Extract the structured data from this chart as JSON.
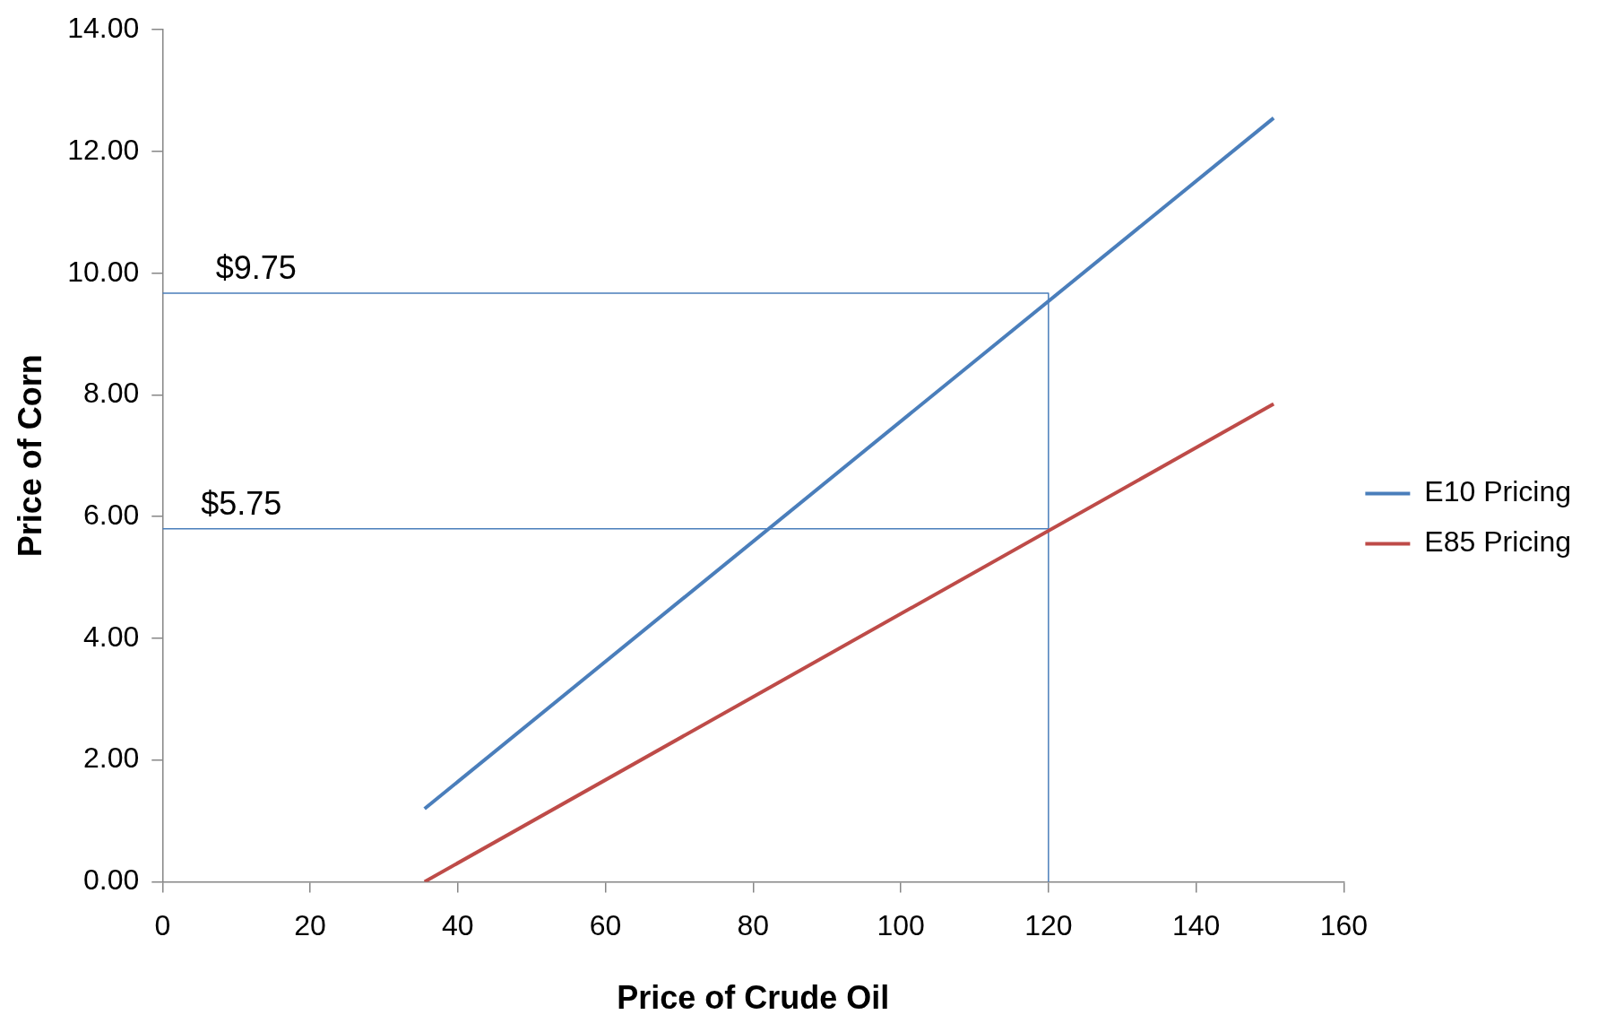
{
  "chart_data": {
    "type": "line",
    "xlabel": "Price of Crude Oil",
    "ylabel": "Price of Corn",
    "xlim": [
      0,
      160
    ],
    "xticks": [
      0,
      20,
      40,
      60,
      80,
      100,
      120,
      140,
      160
    ],
    "ylim": [
      0,
      14
    ],
    "yticks": [
      {
        "value": 0,
        "label": "0.00"
      },
      {
        "value": 2,
        "label": "2.00"
      },
      {
        "value": 4,
        "label": "4.00"
      },
      {
        "value": 6,
        "label": "6.00"
      },
      {
        "value": 8,
        "label": "8.00"
      },
      {
        "value": 10,
        "label": "10.00"
      },
      {
        "value": 12,
        "label": "12.00"
      },
      {
        "value": 14,
        "label": "14.00"
      }
    ],
    "series": [
      {
        "name": "E10 Pricing",
        "color": "#4a7ebb",
        "x": [
          35.5,
          150.5
        ],
        "values": [
          1.2,
          12.55
        ]
      },
      {
        "name": "E85 Pricing",
        "color": "#be4b48",
        "x": [
          35.5,
          150.5
        ],
        "values": [
          0,
          7.85
        ]
      },
      {
        "color": "#4a7ebb",
        "x": [
          0,
          120,
          120
        ],
        "values": [
          9.67,
          9.67,
          0
        ]
      },
      {
        "color": "#4a7ebb",
        "x": [
          0,
          120
        ],
        "values": [
          5.8,
          5.8
        ]
      }
    ],
    "annotations": [
      {
        "text": "$9.75",
        "x": 6,
        "y": 9.67
      },
      {
        "text": "$5.75",
        "x": 4,
        "y": 5.8
      }
    ],
    "legend": "right",
    "grid": false,
    "marker": "none",
    "line_style": "solid"
  }
}
